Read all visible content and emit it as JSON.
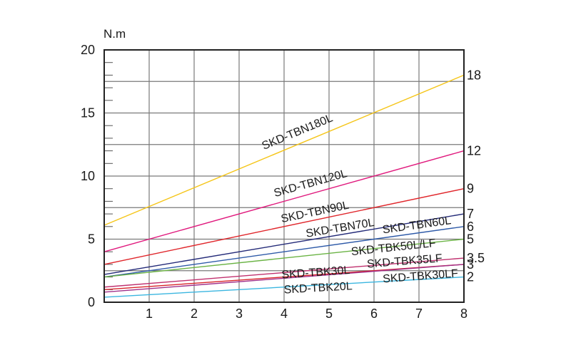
{
  "chart_data": {
    "type": "line",
    "ylabel": "N.m",
    "xlim": [
      0,
      8
    ],
    "ylim": [
      0,
      20
    ],
    "x_ticks": [
      1,
      2,
      3,
      4,
      5,
      6,
      7,
      8
    ],
    "y_ticks": [
      0,
      5,
      10,
      15,
      20
    ],
    "grid": true,
    "series": [
      {
        "name": "SKD-TBN180L",
        "color": "#f5c518",
        "x": [
          0,
          8
        ],
        "y": [
          6.1,
          18
        ],
        "end_label": "18"
      },
      {
        "name": "SKD-TBN120L",
        "color": "#e0197d",
        "x": [
          0,
          8
        ],
        "y": [
          4.0,
          12
        ],
        "end_label": "12"
      },
      {
        "name": "SKD-TBN90L",
        "color": "#e0262b",
        "x": [
          0,
          8
        ],
        "y": [
          3.0,
          9
        ],
        "end_label": "9"
      },
      {
        "name": "SKD-TBN70L",
        "color": "#232a78",
        "x": [
          0,
          8
        ],
        "y": [
          2.2,
          7
        ],
        "end_label": "7"
      },
      {
        "name": "SKD-TBN60L",
        "color": "#2e5aa8",
        "x": [
          0,
          8
        ],
        "y": [
          2.0,
          6
        ],
        "end_label": "6"
      },
      {
        "name": "SKD-TBK50L/LF",
        "color": "#6ab344",
        "x": [
          0,
          8
        ],
        "y": [
          2.0,
          5
        ],
        "end_label": "5"
      },
      {
        "name": "SKD-TBK35LF",
        "color": "#c0306e",
        "x": [
          0,
          8
        ],
        "y": [
          1.2,
          3.5
        ],
        "end_label": "3.5"
      },
      {
        "name": "SKD-TBK30L",
        "color": "#d8232a",
        "x": [
          0,
          8
        ],
        "y": [
          1.0,
          3
        ],
        "end_label": "3"
      },
      {
        "name": "SKD-TBK30LF",
        "color": "#a0308a",
        "x": [
          0,
          8
        ],
        "y": [
          0.8,
          3
        ],
        "end_label": ""
      },
      {
        "name": "SKD-TBK20L",
        "color": "#3bb6e0",
        "x": [
          0,
          8
        ],
        "y": [
          0.4,
          2
        ],
        "end_label": "2"
      }
    ],
    "line_labels": [
      {
        "text": "SKD-TBN180L",
        "series": 0,
        "at_x": 3.55,
        "offset": 0.7
      },
      {
        "text": "SKD-TBN120L",
        "series": 1,
        "at_x": 3.8,
        "offset": 0.55
      },
      {
        "text": "SKD-TBN90L",
        "series": 2,
        "at_x": 3.95,
        "offset": 0.35
      },
      {
        "text": "SKD-TBN70L",
        "series": 3,
        "at_x": 4.5,
        "offset": 0.25
      },
      {
        "text": "SKD-TBN60L",
        "series": 4,
        "at_x": 6.2,
        "offset": 0.35
      },
      {
        "text": "SKD-TBK50L/LF",
        "series": 5,
        "at_x": 5.5,
        "offset": -0.35
      },
      {
        "text": "SKD-TBK35LF",
        "series": 6,
        "at_x": 5.85,
        "offset": -0.15
      },
      {
        "text": "SKD-TBK30L",
        "series": 7,
        "at_x": 3.95,
        "offset": -0.1
      },
      {
        "text": "SKD-TBK30LF",
        "series": 8,
        "at_x": 6.2,
        "offset": -0.95
      },
      {
        "text": "SKD-TBK20L",
        "series": 9,
        "at_x": 4.0,
        "offset": -0.5
      }
    ]
  }
}
